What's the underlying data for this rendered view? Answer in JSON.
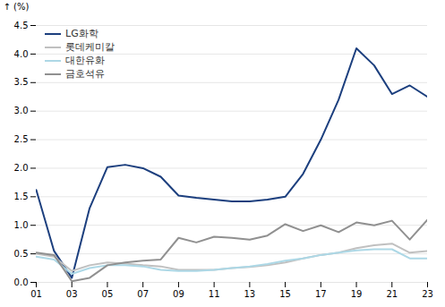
{
  "chart_data": {
    "type": "line",
    "ylabel": "(%)",
    "x": [
      2001,
      2002,
      2003,
      2004,
      2005,
      2006,
      2007,
      2008,
      2009,
      2010,
      2011,
      2012,
      2013,
      2014,
      2015,
      2016,
      2017,
      2018,
      2019,
      2020,
      2021,
      2022,
      2023
    ],
    "series": [
      {
        "name": "LG화학",
        "color": "#1c3f7e",
        "values": [
          1.62,
          0.55,
          0.08,
          1.3,
          2.02,
          2.06,
          2.0,
          1.85,
          1.52,
          1.48,
          1.45,
          1.42,
          1.42,
          1.45,
          1.5,
          1.9,
          2.5,
          3.2,
          4.1,
          3.8,
          3.3,
          3.45,
          3.25
        ]
      },
      {
        "name": "롯데케미칼",
        "color": "#c0c0c0",
        "values": [
          0.5,
          0.45,
          0.2,
          0.3,
          0.35,
          0.33,
          0.3,
          0.28,
          0.22,
          0.22,
          0.22,
          0.25,
          0.27,
          0.3,
          0.35,
          0.42,
          0.48,
          0.52,
          0.6,
          0.65,
          0.68,
          0.52,
          0.55
        ]
      },
      {
        "name": "대한유화",
        "color": "#add8e6",
        "values": [
          0.45,
          0.4,
          0.15,
          0.25,
          0.3,
          0.3,
          0.28,
          0.22,
          0.2,
          0.2,
          0.22,
          0.25,
          0.28,
          0.32,
          0.38,
          0.42,
          0.48,
          0.52,
          0.56,
          0.58,
          0.58,
          0.42,
          0.42
        ]
      },
      {
        "name": "금호석유",
        "color": "#909090",
        "values": [
          0.52,
          0.48,
          0.02,
          0.08,
          0.3,
          0.35,
          0.38,
          0.4,
          0.78,
          0.7,
          0.8,
          0.78,
          0.75,
          0.82,
          1.02,
          0.9,
          1.0,
          0.88,
          1.05,
          1.0,
          1.08,
          0.75,
          1.1
        ]
      }
    ],
    "xlim": [
      2001,
      2023
    ],
    "xticks": [
      {
        "value": 2001,
        "label": "01"
      },
      {
        "value": 2003,
        "label": "03"
      },
      {
        "value": 2005,
        "label": "05"
      },
      {
        "value": 2007,
        "label": "07"
      },
      {
        "value": 2009,
        "label": "09"
      },
      {
        "value": 2011,
        "label": "11"
      },
      {
        "value": 2013,
        "label": "13"
      },
      {
        "value": 2015,
        "label": "15"
      },
      {
        "value": 2017,
        "label": "17"
      },
      {
        "value": 2019,
        "label": "19"
      },
      {
        "value": 2021,
        "label": "21"
      },
      {
        "value": 2023,
        "label": "23"
      }
    ],
    "ylim": [
      0.0,
      4.5
    ],
    "yticks": [
      {
        "value": 0.0,
        "label": "0.0"
      },
      0.5,
      {
        "value": 1.0,
        "label": "1.0"
      },
      1.5,
      {
        "value": 2.0,
        "label": "2.0"
      },
      2.5,
      {
        "value": 3.0,
        "label": "3.0"
      },
      3.5,
      {
        "value": 4.0,
        "label": "4.0"
      },
      4.5
    ],
    "grid": "y",
    "legend": "upper left"
  }
}
